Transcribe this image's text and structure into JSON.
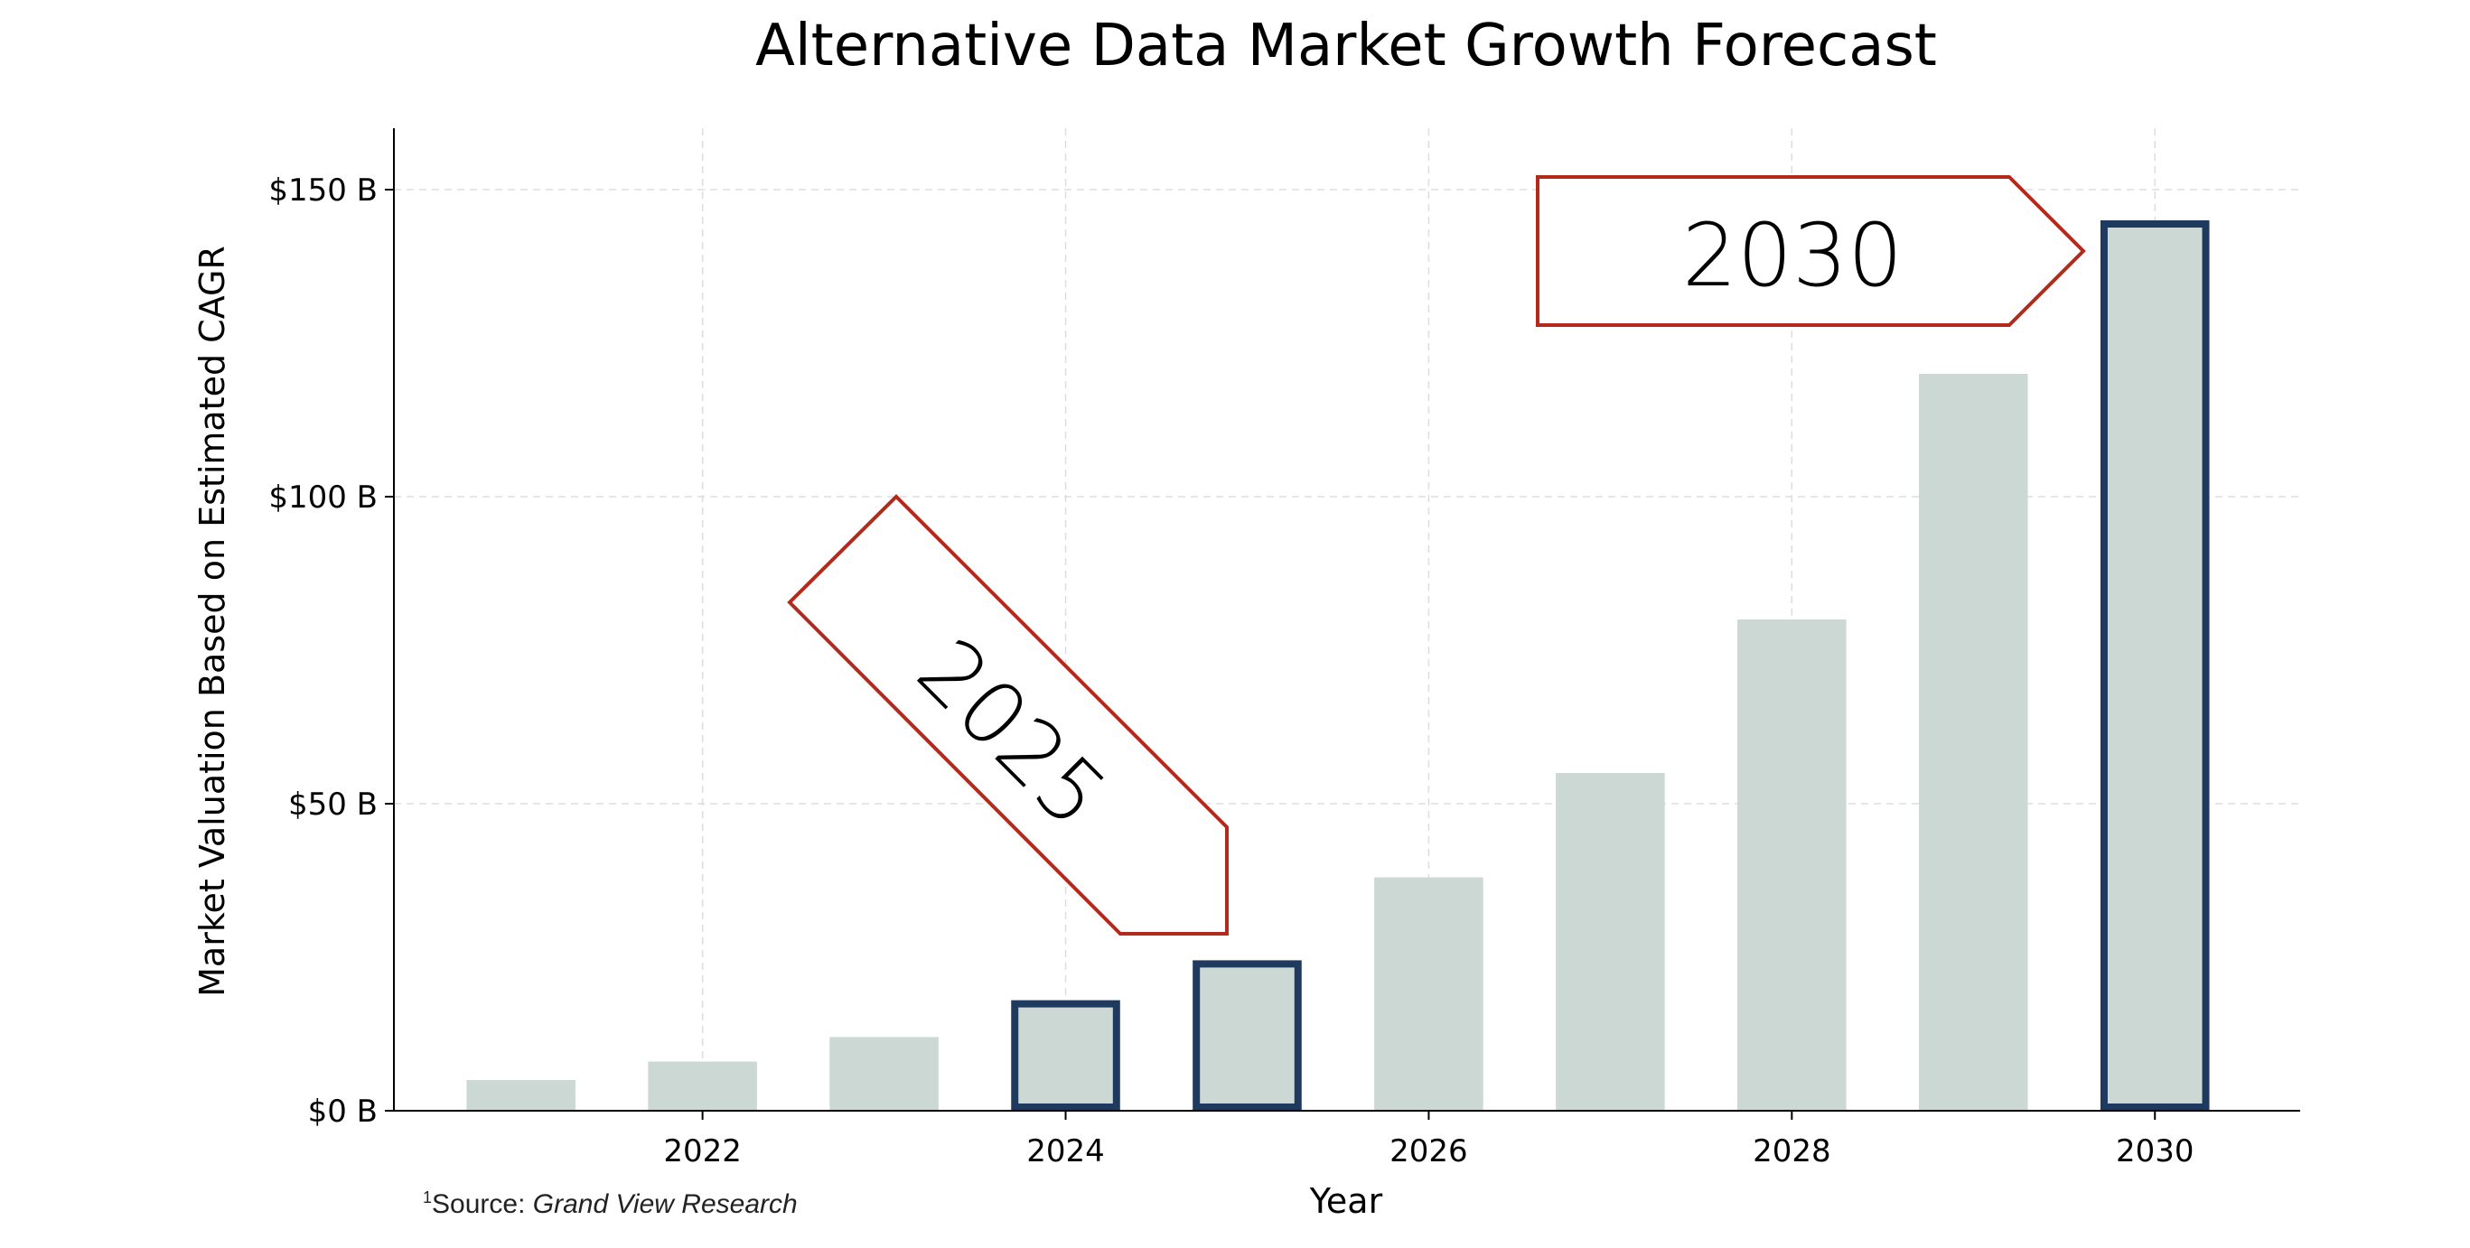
{
  "chart_data": {
    "type": "bar",
    "title": "Alternative Data Market Growth Forecast",
    "xlabel": "Year",
    "ylabel": "Market Valuation Based on Estimated CAGR",
    "x": [
      2021,
      2022,
      2023,
      2024,
      2025,
      2026,
      2027,
      2028,
      2029,
      2030
    ],
    "values": [
      5,
      8,
      12,
      18,
      24.5,
      38,
      55,
      80,
      120,
      145
    ],
    "highlighted": [
      2024,
      2025,
      2030
    ],
    "xticks": [
      2022,
      2024,
      2026,
      2028,
      2030
    ],
    "xtick_labels": [
      "2022",
      "2024",
      "2026",
      "2028",
      "2030"
    ],
    "yticks": [
      0,
      50,
      100,
      150
    ],
    "ytick_labels": [
      "$0 B",
      "$50 B",
      "$100 B",
      "$150 B"
    ],
    "xlim": [
      2020.3,
      2030.8
    ],
    "ylim": [
      0,
      160
    ],
    "grid": true,
    "annotations": [
      {
        "text": "2025",
        "target_x": 2025
      },
      {
        "text": "2030",
        "target_x": 2030
      }
    ],
    "colors": {
      "bar_fill": "#ccd8d3",
      "highlight_border": "#1f3a5f",
      "annotation_border": "#b22a1e",
      "grid": "#dddddd",
      "axis": "#000000"
    }
  },
  "footnote": {
    "marker": "1",
    "prefix": "Source: ",
    "source": "Grand View Research"
  }
}
